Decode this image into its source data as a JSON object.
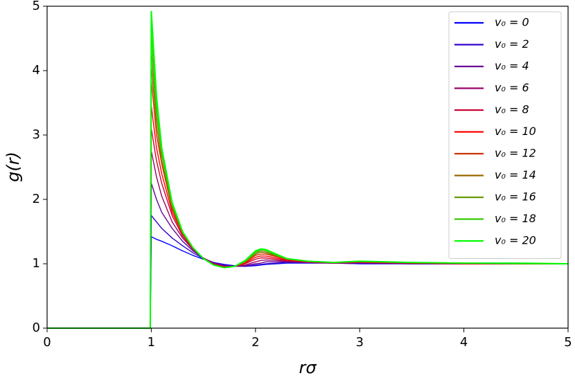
{
  "chart_data": {
    "type": "line",
    "xlabel": "rσ",
    "ylabel": "g(r)",
    "xlim": [
      0,
      5
    ],
    "ylim": [
      0,
      5
    ],
    "xticks": [
      0,
      1,
      2,
      3,
      4,
      5
    ],
    "yticks": [
      0,
      1,
      2,
      3,
      4,
      5
    ],
    "legend": "upper right",
    "x": [
      0,
      0.99,
      1.0,
      1.05,
      1.1,
      1.2,
      1.3,
      1.4,
      1.5,
      1.6,
      1.7,
      1.8,
      1.9,
      2.0,
      2.05,
      2.1,
      2.2,
      2.3,
      2.5,
      2.75,
      3.0,
      3.5,
      4.0,
      4.5,
      5.0
    ],
    "series": [
      {
        "name": "v₀ = 0",
        "color": "#0000ff",
        "values": [
          0,
          0,
          1.42,
          1.38,
          1.35,
          1.28,
          1.2,
          1.13,
          1.07,
          1.02,
          0.99,
          0.97,
          0.96,
          0.97,
          0.98,
          0.99,
          1.0,
          1.01,
          1.01,
          1.01,
          1.0,
          1.0,
          1.0,
          1.0,
          1.0
        ]
      },
      {
        "name": "v₀ = 2",
        "color": "#3300cc",
        "values": [
          0,
          0,
          1.75,
          1.65,
          1.55,
          1.4,
          1.28,
          1.17,
          1.08,
          1.02,
          0.98,
          0.96,
          0.96,
          0.98,
          0.99,
          1.0,
          1.01,
          1.02,
          1.02,
          1.01,
          1.01,
          1.0,
          1.0,
          1.0,
          1.0
        ]
      },
      {
        "name": "v₀ = 4",
        "color": "#660099",
        "values": [
          0,
          0,
          2.25,
          2.0,
          1.8,
          1.55,
          1.35,
          1.2,
          1.09,
          1.01,
          0.97,
          0.96,
          0.97,
          1.0,
          1.01,
          1.03,
          1.03,
          1.03,
          1.02,
          1.01,
          1.01,
          1.0,
          1.0,
          1.0,
          1.0
        ]
      },
      {
        "name": "v₀ = 6",
        "color": "#990066",
        "values": [
          0,
          0,
          2.75,
          2.35,
          2.05,
          1.65,
          1.4,
          1.22,
          1.09,
          1.0,
          0.96,
          0.96,
          0.98,
          1.03,
          1.05,
          1.06,
          1.05,
          1.04,
          1.02,
          1.01,
          1.02,
          1.01,
          1.0,
          1.0,
          1.0
        ]
      },
      {
        "name": "v₀ = 8",
        "color": "#cc0033",
        "values": [
          0,
          0,
          3.1,
          2.6,
          2.25,
          1.75,
          1.43,
          1.23,
          1.09,
          0.99,
          0.95,
          0.96,
          1.0,
          1.07,
          1.09,
          1.09,
          1.07,
          1.05,
          1.03,
          1.01,
          1.02,
          1.01,
          1.0,
          1.0,
          1.0
        ]
      },
      {
        "name": "v₀ = 10",
        "color": "#ff0000",
        "values": [
          0,
          0,
          3.45,
          2.8,
          2.4,
          1.8,
          1.46,
          1.24,
          1.08,
          0.99,
          0.95,
          0.96,
          1.01,
          1.1,
          1.12,
          1.12,
          1.09,
          1.06,
          1.03,
          1.02,
          1.03,
          1.01,
          1.0,
          1.0,
          1.0
        ]
      },
      {
        "name": "v₀ = 12",
        "color": "#cc3300",
        "values": [
          0,
          0,
          3.85,
          3.0,
          2.55,
          1.85,
          1.47,
          1.24,
          1.08,
          0.98,
          0.94,
          0.96,
          1.02,
          1.13,
          1.15,
          1.15,
          1.11,
          1.07,
          1.03,
          1.02,
          1.03,
          1.01,
          1.01,
          1.0,
          1.0
        ]
      },
      {
        "name": "v₀ = 14",
        "color": "#996600",
        "values": [
          0,
          0,
          4.1,
          3.15,
          2.6,
          1.88,
          1.48,
          1.25,
          1.08,
          0.98,
          0.94,
          0.96,
          1.03,
          1.15,
          1.18,
          1.17,
          1.12,
          1.07,
          1.04,
          1.02,
          1.03,
          1.02,
          1.01,
          1.0,
          1.0
        ]
      },
      {
        "name": "v₀ = 16",
        "color": "#669900",
        "values": [
          0,
          0,
          4.35,
          3.3,
          2.7,
          1.9,
          1.49,
          1.25,
          1.08,
          0.98,
          0.94,
          0.96,
          1.04,
          1.17,
          1.2,
          1.19,
          1.13,
          1.08,
          1.04,
          1.02,
          1.04,
          1.02,
          1.01,
          1.0,
          1.0
        ]
      },
      {
        "name": "v₀ = 18",
        "color": "#33cc00",
        "values": [
          0,
          0,
          4.6,
          3.45,
          2.75,
          1.93,
          1.5,
          1.25,
          1.08,
          0.98,
          0.94,
          0.96,
          1.04,
          1.18,
          1.22,
          1.21,
          1.14,
          1.08,
          1.04,
          1.02,
          1.04,
          1.02,
          1.01,
          1.01,
          1.0
        ]
      },
      {
        "name": "v₀ = 20",
        "color": "#00ff00",
        "values": [
          0,
          0,
          4.92,
          3.6,
          2.8,
          1.95,
          1.5,
          1.25,
          1.08,
          0.98,
          0.94,
          0.96,
          1.05,
          1.2,
          1.23,
          1.22,
          1.15,
          1.08,
          1.04,
          1.02,
          1.04,
          1.02,
          1.01,
          1.01,
          1.0
        ]
      }
    ]
  }
}
